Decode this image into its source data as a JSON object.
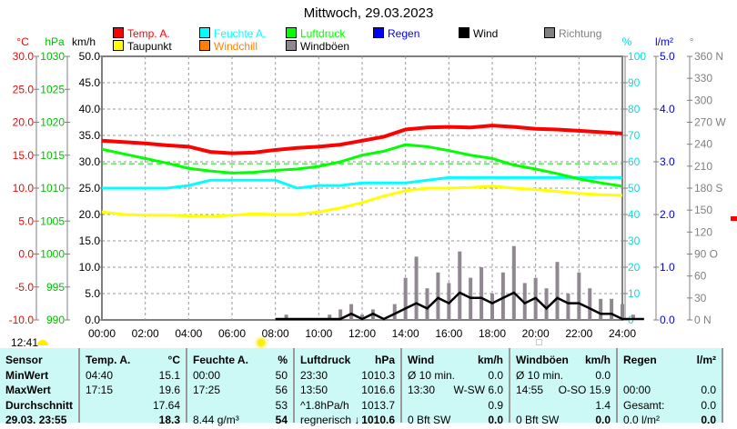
{
  "title": "Mittwoch, 29.03.2023",
  "legend": [
    {
      "label": "Temp. A.",
      "color": "#ff0000"
    },
    {
      "label": "Feuchte A.",
      "color": "#00ffff"
    },
    {
      "label": "Luftdruck",
      "color": "#00ff00"
    },
    {
      "label": "Regen",
      "color": "#0000ff"
    },
    {
      "label": "Wind",
      "color": "#000000"
    },
    {
      "label": "Richtung",
      "color": "#808080"
    },
    {
      "label": "Taupunkt",
      "color": "#ffff00"
    },
    {
      "label": "Windchill",
      "color": "#ff8000"
    },
    {
      "label": "Windböen",
      "color": "#908890"
    }
  ],
  "time_label": "12:41",
  "chart_data": {
    "type": "line",
    "title": "Mittwoch, 29.03.2023",
    "x_ticks": [
      "00:00",
      "02:00",
      "04:00",
      "06:00",
      "08:00",
      "10:00",
      "12:00",
      "14:00",
      "16:00",
      "18:00",
      "20:00",
      "22:00",
      "24:00"
    ],
    "x_hours": [
      0,
      1,
      2,
      3,
      4,
      5,
      6,
      7,
      8,
      9,
      10,
      11,
      12,
      13,
      14,
      15,
      16,
      17,
      18,
      19,
      20,
      21,
      22,
      23,
      24
    ],
    "axes": {
      "temp": {
        "unit": "°C",
        "ticks": [
          "30.0",
          "25.0",
          "20.0",
          "15.0",
          "10.0",
          "5.0",
          "0.0",
          "-5.0",
          "-10.0"
        ],
        "range": [
          -10,
          30
        ],
        "color": "#ff0000"
      },
      "pressure": {
        "unit": "hPa",
        "ticks": [
          "1030",
          "1025",
          "1020",
          "1015",
          "1010",
          "1005",
          "1000",
          "995",
          "990"
        ],
        "range": [
          990,
          1030
        ],
        "color": "#00c000"
      },
      "wind": {
        "unit": "km/h",
        "ticks": [
          "50.0",
          "45.0",
          "40.0",
          "35.0",
          "30.0",
          "25.0",
          "20.0",
          "15.0",
          "10.0",
          "5.0",
          "0.0"
        ],
        "range": [
          0,
          50
        ],
        "color": "#000000"
      },
      "humidity": {
        "unit": "%",
        "ticks": [
          "100",
          "90",
          "80",
          "70",
          "60",
          "50",
          "40",
          "30",
          "20",
          "10",
          "0"
        ],
        "range": [
          0,
          100
        ],
        "color": "#00e0e0"
      },
      "rain": {
        "unit": "l/m²",
        "ticks": [
          "5.0",
          "4.0",
          "3.0",
          "2.0",
          "1.0",
          "0.0"
        ],
        "range": [
          0,
          5
        ],
        "color": "#0000e0"
      },
      "direction": {
        "unit": "°",
        "ticks": [
          "360 N",
          "330",
          "300",
          "270 W",
          "240",
          "210",
          "180 S",
          "150",
          "120",
          "90  O",
          "60",
          "30",
          "0   N"
        ],
        "range": [
          0,
          360
        ],
        "color": "#808080"
      }
    },
    "series": [
      {
        "name": "Temp. A.",
        "axis": "temp",
        "color": "#ff0000",
        "values": [
          17.2,
          17.0,
          16.8,
          16.5,
          16.3,
          15.5,
          15.3,
          15.4,
          15.8,
          16.1,
          16.3,
          16.6,
          17.2,
          17.8,
          18.9,
          19.2,
          19.3,
          19.2,
          19.5,
          19.3,
          19.0,
          18.9,
          18.7,
          18.5,
          18.3
        ]
      },
      {
        "name": "Feuchte A.",
        "axis": "humidity",
        "color": "#00ffff",
        "values": [
          50,
          50,
          50,
          50,
          51,
          53,
          53,
          53,
          53,
          50,
          51,
          51,
          52,
          52,
          52,
          53,
          54,
          54,
          54,
          54,
          54,
          54,
          54,
          54,
          54
        ]
      },
      {
        "name": "Luftdruck",
        "axis": "pressure",
        "color": "#00ff00",
        "values": [
          1015.9,
          1015.2,
          1014.5,
          1013.8,
          1013.0,
          1012.6,
          1012.3,
          1012.4,
          1012.7,
          1012.9,
          1013.3,
          1014.0,
          1015.0,
          1015.6,
          1016.6,
          1016.3,
          1015.7,
          1015.0,
          1014.5,
          1013.5,
          1012.9,
          1012.2,
          1011.4,
          1010.8,
          1010.3
        ]
      },
      {
        "name": "Taupunkt",
        "axis": "temp",
        "color": "#ffff00",
        "values": [
          6.4,
          6.0,
          5.9,
          5.9,
          5.8,
          5.7,
          5.9,
          6.1,
          6.0,
          6.0,
          6.4,
          7.0,
          7.8,
          8.8,
          9.6,
          10.0,
          10.0,
          10.1,
          10.3,
          10.0,
          9.8,
          9.5,
          9.2,
          9.0,
          8.9
        ]
      }
    ],
    "wind_half_hourly": {
      "hours_start": 8,
      "step_h": 0.5,
      "gust": [
        0,
        1,
        0,
        0,
        0,
        1,
        2,
        3,
        1,
        2,
        0,
        3,
        8,
        12,
        6,
        9,
        7,
        13,
        8,
        10,
        5,
        9,
        14,
        7,
        8,
        6,
        11,
        5,
        9,
        6,
        4,
        4,
        3,
        1,
        0
      ],
      "wind": [
        0,
        0,
        0,
        0,
        0,
        0,
        0,
        1,
        0,
        1,
        0,
        1,
        2,
        3,
        2,
        4,
        3,
        5,
        4,
        4,
        3,
        4,
        5,
        3,
        4,
        2,
        4,
        3,
        3,
        2,
        1,
        1,
        0,
        0,
        0
      ]
    },
    "pressure_avg": 1013.7
  },
  "table": {
    "headers": [
      [
        "Sensor",
        ""
      ],
      [
        "Temp. A.",
        "°C"
      ],
      [
        "Feuchte A.",
        "%"
      ],
      [
        "Luftdruck",
        "hPa"
      ],
      [
        "Wind",
        "km/h"
      ],
      [
        "Windböen",
        "km/h"
      ],
      [
        "Regen",
        "l/m²"
      ]
    ],
    "rows": [
      [
        "MinWert",
        "04:40",
        "15.1",
        "00:00",
        "50",
        "23:30",
        "1010.3",
        "Ø 10 min.",
        "0.0",
        "Ø 10 min.",
        "0.0",
        "",
        ""
      ],
      [
        "MaxWert",
        "17:15",
        "19.6",
        "17:25",
        "56",
        "13:50",
        "1016.6",
        "13:30",
        "W-SW 6.0",
        "14:55",
        "O-SO 15.9",
        "00:00",
        "0.0"
      ],
      [
        "Durchschnitt",
        "",
        "17.64",
        "",
        "53",
        "^1.8hPa/h",
        "1013.7",
        "",
        "0.9",
        "",
        "1.4",
        "Gesamt:",
        "0.0"
      ],
      [
        "29.03. 23:55",
        "",
        "18.3",
        "8.44 g/m³",
        "54",
        "regnerisch ↓",
        "1010.6",
        "0 Bft SW",
        "0.0",
        "0 Bft SW",
        "0.0",
        "0.0 l/m²",
        "0.0"
      ]
    ]
  }
}
